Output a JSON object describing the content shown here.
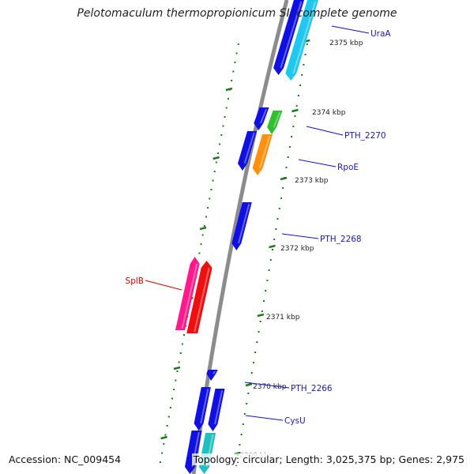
{
  "title": "Pelotomaculum thermopropionicum SI, complete genome",
  "footer": {
    "accession": "Accession: NC_009454",
    "topology": "Topology: circular; Length: 3,025,375 bp; Genes: 2,975"
  },
  "colors": {
    "backbone": "#8c8c8c",
    "tick": "#1e7a1e",
    "label_forward": "#1a1aa6",
    "label_reverse": "#cc0000",
    "label_line": "#1010cc",
    "label_line_reverse": "#cc0000"
  },
  "ticks": [
    {
      "label": "2375 kbp"
    },
    {
      "label": "2374 kbp"
    },
    {
      "label": "2373 kbp"
    },
    {
      "label": "2372 kbp"
    },
    {
      "label": "2371 kbp"
    },
    {
      "label": "2370 kbp"
    },
    {
      "label": "2369 kbp"
    }
  ],
  "genes": [
    {
      "name": "UraA",
      "strand": "forward",
      "color": "#1010e0"
    },
    {
      "name": "",
      "strand": "forward",
      "color": "#20c8f0"
    },
    {
      "name": "PTH_2270",
      "strand": "forward",
      "color": "#30c030"
    },
    {
      "name": "",
      "strand": "forward",
      "color": "#1010e0"
    },
    {
      "name": "RpoE",
      "strand": "forward",
      "color": "#ff9010"
    },
    {
      "name": "",
      "strand": "forward",
      "color": "#1010e0"
    },
    {
      "name": "PTH_2268",
      "strand": "forward",
      "color": "#1010e0"
    },
    {
      "name": "SplB",
      "strand": "reverse",
      "color": "#ff1a8c"
    },
    {
      "name": "",
      "strand": "reverse",
      "color": "#ee1010"
    },
    {
      "name": "PTH_2266",
      "strand": "forward",
      "color": "#1010e0"
    },
    {
      "name": "CysU",
      "strand": "forward",
      "color": "#1010e0"
    },
    {
      "name": "",
      "strand": "forward",
      "color": "#1010e0"
    },
    {
      "name": "",
      "strand": "forward",
      "color": "#1010e0"
    },
    {
      "name": "",
      "strand": "forward",
      "color": "#20c0c0"
    }
  ]
}
